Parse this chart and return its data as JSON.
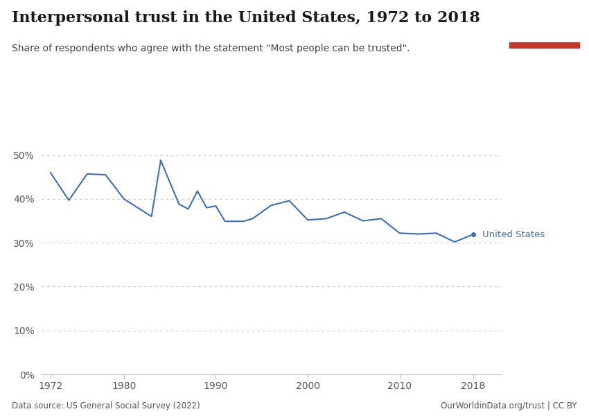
{
  "title": "Interpersonal trust in the United States, 1972 to 2018",
  "subtitle": "Share of respondents who agree with the statement \"Most people can be trusted\".",
  "years": [
    1972,
    1974,
    1976,
    1978,
    1980,
    1983,
    1984,
    1986,
    1987,
    1988,
    1989,
    1990,
    1991,
    1993,
    1994,
    1996,
    1998,
    2000,
    2002,
    2004,
    2006,
    2008,
    2010,
    2012,
    2014,
    2016,
    2018
  ],
  "values": [
    0.46,
    0.397,
    0.457,
    0.455,
    0.4,
    0.36,
    0.488,
    0.388,
    0.377,
    0.418,
    0.38,
    0.384,
    0.349,
    0.349,
    0.355,
    0.385,
    0.396,
    0.352,
    0.355,
    0.37,
    0.35,
    0.355,
    0.322,
    0.32,
    0.322,
    0.302,
    0.319
  ],
  "line_color": "#3d6db5",
  "label": "United States",
  "ylim": [
    0,
    0.55
  ],
  "yticks": [
    0.0,
    0.1,
    0.2,
    0.3,
    0.4,
    0.5
  ],
  "ytick_labels": [
    "0%",
    "10%",
    "20%",
    "30%",
    "40%",
    "50%"
  ],
  "xticks": [
    1972,
    1980,
    1990,
    2000,
    2010,
    2018
  ],
  "background_color": "#ffffff",
  "grid_color": "#c8c8c8",
  "datasource": "Data source: US General Social Survey (2022)",
  "credit": "OurWorldinData.org/trust | CC BY",
  "logo_bg": "#1a2e4a",
  "logo_red": "#c0392b",
  "title_fontsize": 16,
  "subtitle_fontsize": 10,
  "label_color": "#3d6db5"
}
